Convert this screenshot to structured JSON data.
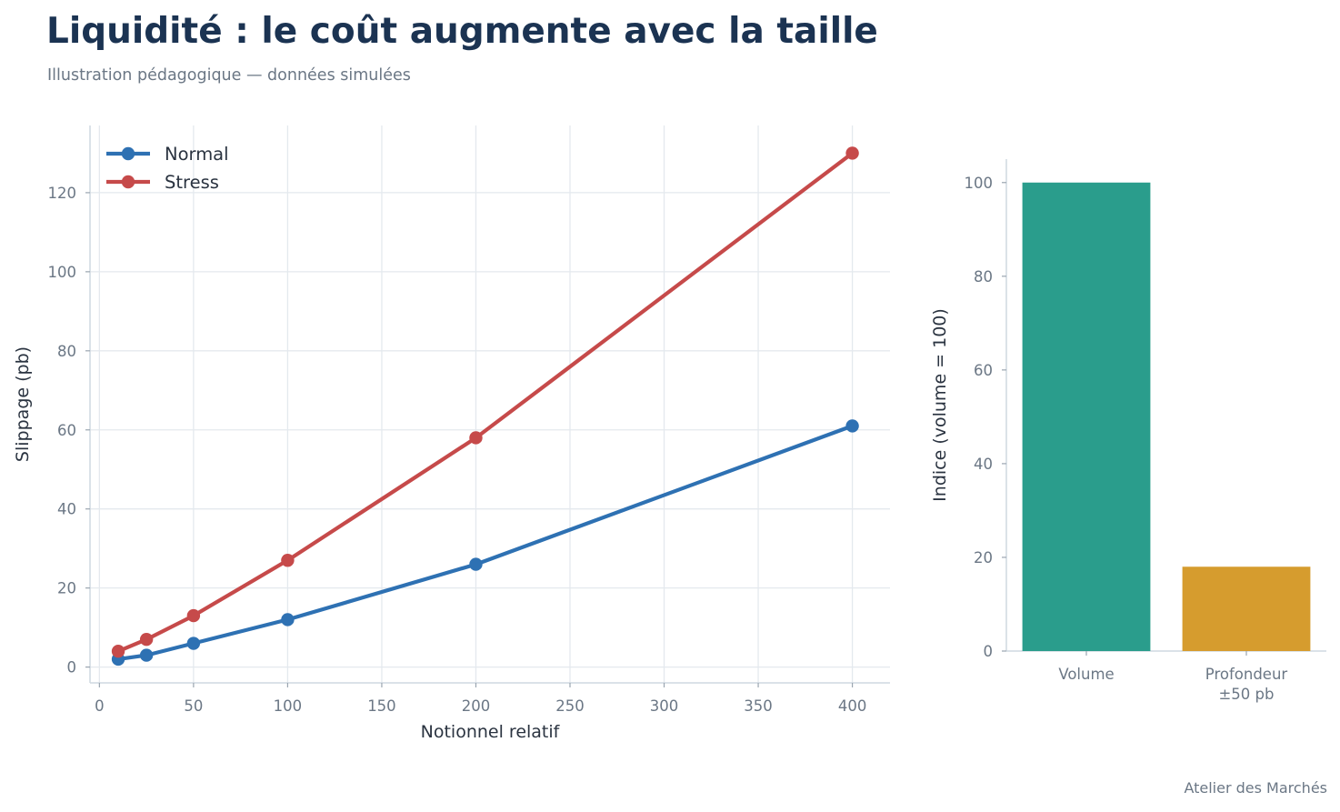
{
  "title": "Liquidité : le coût augmente avec la taille",
  "subtitle": "Illustration pédagogique — données simulées",
  "source": "Atelier des Marchés",
  "chart_data": [
    {
      "type": "line",
      "xlabel": "Notionnel relatif",
      "ylabel": "Slippage (pb)",
      "xlim": [
        -5,
        420
      ],
      "ylim": [
        -4,
        137
      ],
      "xticks": [
        0,
        50,
        100,
        150,
        200,
        250,
        300,
        350,
        400
      ],
      "yticks": [
        0,
        20,
        40,
        60,
        80,
        100,
        120
      ],
      "grid": true,
      "legend_position": "top-left",
      "x": [
        10,
        25,
        50,
        100,
        200,
        400
      ],
      "series": [
        {
          "name": "Normal",
          "color": "#2e71b3",
          "values": [
            2,
            3,
            6,
            12,
            26,
            61
          ]
        },
        {
          "name": "Stress",
          "color": "#c64a4a",
          "values": [
            4,
            7,
            13,
            27,
            58,
            130
          ]
        }
      ]
    },
    {
      "type": "bar",
      "categories": [
        "Volume",
        "Profondeur\n±50 pb"
      ],
      "values": [
        100,
        18
      ],
      "colors": [
        "#2a9d8c",
        "#d69c2e"
      ],
      "xlabel": "",
      "ylabel": "Indice (volume = 100)",
      "ylim": [
        0,
        105
      ],
      "yticks": [
        0,
        20,
        40,
        60,
        80,
        100
      ],
      "grid": false
    }
  ]
}
